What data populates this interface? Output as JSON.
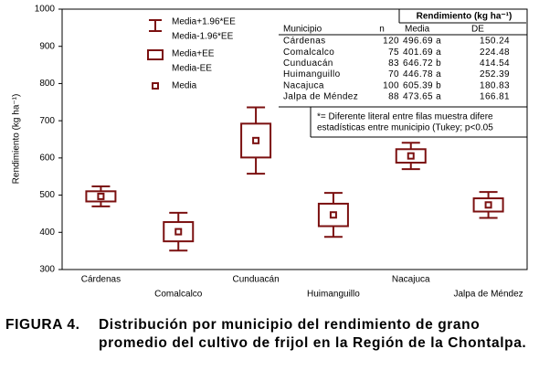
{
  "chart_data": {
    "type": "box",
    "y_label": "Rendimiento (kg ha⁻¹)",
    "categories": [
      "Cárdenas",
      "Comalcalco",
      "Cunduacán",
      "Huimanguillo",
      "Nacajuca",
      "Jalpa de Méndez"
    ],
    "series": [
      {
        "color": "#7b1010",
        "mean": [
          496.69,
          401.69,
          646.72,
          446.78,
          605.39,
          473.65
        ],
        "box_low": [
          483.0,
          375.8,
          601.2,
          416.6,
          587.3,
          455.9
        ],
        "box_high": [
          510.4,
          427.6,
          692.2,
          477.0,
          623.5,
          491.4
        ],
        "whisker_low": [
          469.8,
          350.9,
          557.5,
          387.7,
          569.9,
          438.8
        ],
        "whisker_high": [
          523.6,
          452.5,
          735.9,
          505.9,
          640.8,
          508.5
        ]
      }
    ],
    "ylim": [
      300,
      1000
    ],
    "yticks": [
      300,
      400,
      500,
      600,
      700,
      800,
      900,
      1000
    ],
    "legend": [
      "Media+1.96*EE",
      "Media-1.96*EE",
      "Media+EE",
      "Media-EE",
      "Media"
    ],
    "table": {
      "title": "Rendimiento (kg ha⁻¹)",
      "columns": [
        "Municipio",
        "n",
        "Media",
        "DE"
      ],
      "rows": [
        [
          "Cárdenas",
          "120",
          "496.69 a",
          "150.24"
        ],
        [
          "Comalcalco",
          "75",
          "401.69 a",
          "224.48"
        ],
        [
          "Cunduacán",
          "83",
          "646.72 b",
          "414.54"
        ],
        [
          "Huimanguillo",
          "70",
          "446.78 a",
          "252.39"
        ],
        [
          "Nacajuca",
          "100",
          "605.39 b",
          "180.83"
        ],
        [
          "Jalpa de Méndez",
          "88",
          "473.65 a",
          "166.81"
        ]
      ]
    },
    "note": [
      "*= Diferente literal entre filas muestra difere",
      "estadísticas entre municipio (Tukey; p<0.05"
    ],
    "caption": {
      "label": "FIGURA 4.",
      "text": "Distribución por municipio del rendimiento de grano promedio del cultivo de frijol en la Región de la Chontalpa."
    }
  }
}
